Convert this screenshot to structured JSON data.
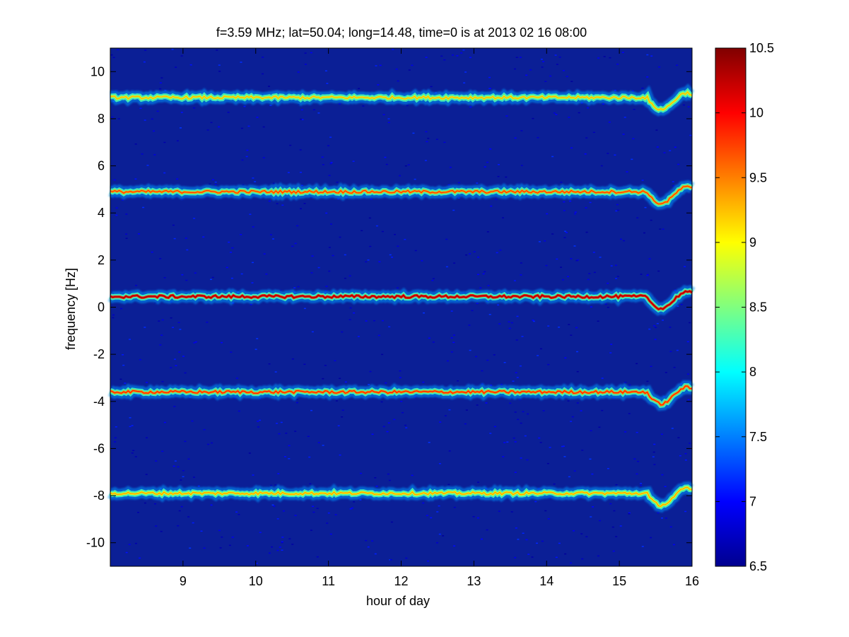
{
  "chart_data": {
    "type": "heatmap",
    "title": "f=3.59 MHz;  lat=50.04; long=14.48, time=0 is at 2013 02 16 08:00",
    "xlabel": "hour of day",
    "ylabel": "frequency [Hz]",
    "xlim": [
      8,
      16
    ],
    "ylim": [
      -11,
      11
    ],
    "xticks": [
      9,
      10,
      11,
      12,
      13,
      14,
      15,
      16
    ],
    "yticks": [
      -10,
      -8,
      -6,
      -4,
      -2,
      0,
      2,
      4,
      6,
      8,
      10
    ],
    "colorbar": {
      "range": [
        6.5,
        10.5
      ],
      "ticks": [
        6.5,
        7,
        7.5,
        8,
        8.5,
        9,
        9.5,
        10,
        10.5
      ],
      "colormap": "jet"
    },
    "background_value": 6.6,
    "traces": [
      {
        "name": "",
        "center_hz": 8.9,
        "peak_value": 9.3,
        "note": ""
      },
      {
        "name": "",
        "center_hz": 4.9,
        "peak_value": 9.8,
        "note": ""
      },
      {
        "name": "",
        "center_hz": 0.45,
        "peak_value": 10.4,
        "note": ""
      },
      {
        "name": "",
        "center_hz": -3.6,
        "peak_value": 9.9,
        "note": ""
      },
      {
        "name": "",
        "center_hz": -7.9,
        "peak_value": 9.4,
        "note": ""
      }
    ],
    "grid": false,
    "colors": {
      "background": "#0a1a8f",
      "axes_bg": "#00008f"
    }
  }
}
